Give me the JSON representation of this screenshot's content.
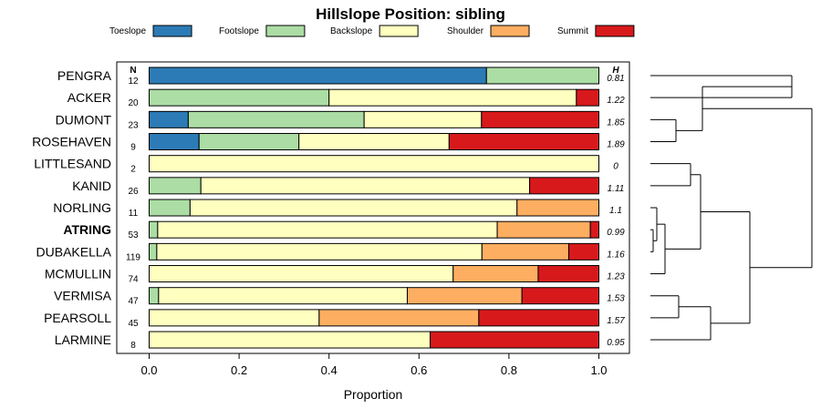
{
  "chart_data": {
    "type": "bar",
    "orientation": "horizontal",
    "stacked": true,
    "title": "Hillslope Position: sibling",
    "xlabel": "Proportion",
    "ylabel": "",
    "xlim": [
      0,
      1
    ],
    "x_ticks": [
      "0.0",
      "0.2",
      "0.4",
      "0.6",
      "0.8",
      "1.0"
    ],
    "n_header": "N",
    "h_header": "H",
    "highlight": "ATRING",
    "series": [
      {
        "name": "Toeslope",
        "color": "#2c7bb6"
      },
      {
        "name": "Footslope",
        "color": "#abdda4"
      },
      {
        "name": "Backslope",
        "color": "#ffffbf"
      },
      {
        "name": "Shoulder",
        "color": "#fdae61"
      },
      {
        "name": "Summit",
        "color": "#d7191c"
      }
    ],
    "rows": [
      {
        "name": "PENGRA",
        "n": "12",
        "h": "0.81",
        "values": [
          0.75,
          0.25,
          0,
          0,
          0
        ]
      },
      {
        "name": "ACKER",
        "n": "20",
        "h": "1.22",
        "values": [
          0,
          0.4,
          0.55,
          0,
          0.05
        ]
      },
      {
        "name": "DUMONT",
        "n": "23",
        "h": "1.85",
        "values": [
          0.087,
          0.391,
          0.261,
          0,
          0.261
        ]
      },
      {
        "name": "ROSEHAVEN",
        "n": "9",
        "h": "1.89",
        "values": [
          0.111,
          0.222,
          0.334,
          0,
          0.333
        ]
      },
      {
        "name": "LITTLESAND",
        "n": "2",
        "h": "0",
        "values": [
          0,
          0,
          1,
          0,
          0
        ]
      },
      {
        "name": "KANID",
        "n": "26",
        "h": "1.11",
        "values": [
          0,
          0.115,
          0.731,
          0,
          0.154
        ]
      },
      {
        "name": "NORLING",
        "n": "11",
        "h": "1.1",
        "values": [
          0,
          0.091,
          0.727,
          0.182,
          0
        ]
      },
      {
        "name": "ATRING",
        "n": "53",
        "h": "0.99",
        "values": [
          0,
          0.019,
          0.755,
          0.207,
          0.019
        ]
      },
      {
        "name": "DUBAKELLA",
        "n": "119",
        "h": "1.16",
        "values": [
          0,
          0.017,
          0.723,
          0.193,
          0.067
        ]
      },
      {
        "name": "MCMULLIN",
        "n": "74",
        "h": "1.23",
        "values": [
          0,
          0,
          0.676,
          0.189,
          0.135
        ]
      },
      {
        "name": "VERMISA",
        "n": "47",
        "h": "1.53",
        "values": [
          0,
          0.021,
          0.553,
          0.255,
          0.171
        ]
      },
      {
        "name": "PEARSOLL",
        "n": "45",
        "h": "1.57",
        "values": [
          0,
          0,
          0.378,
          0.355,
          0.267
        ]
      },
      {
        "name": "LARMINE",
        "n": "8",
        "h": "0.95",
        "values": [
          0,
          0,
          0.625,
          0,
          0.375
        ]
      }
    ]
  }
}
